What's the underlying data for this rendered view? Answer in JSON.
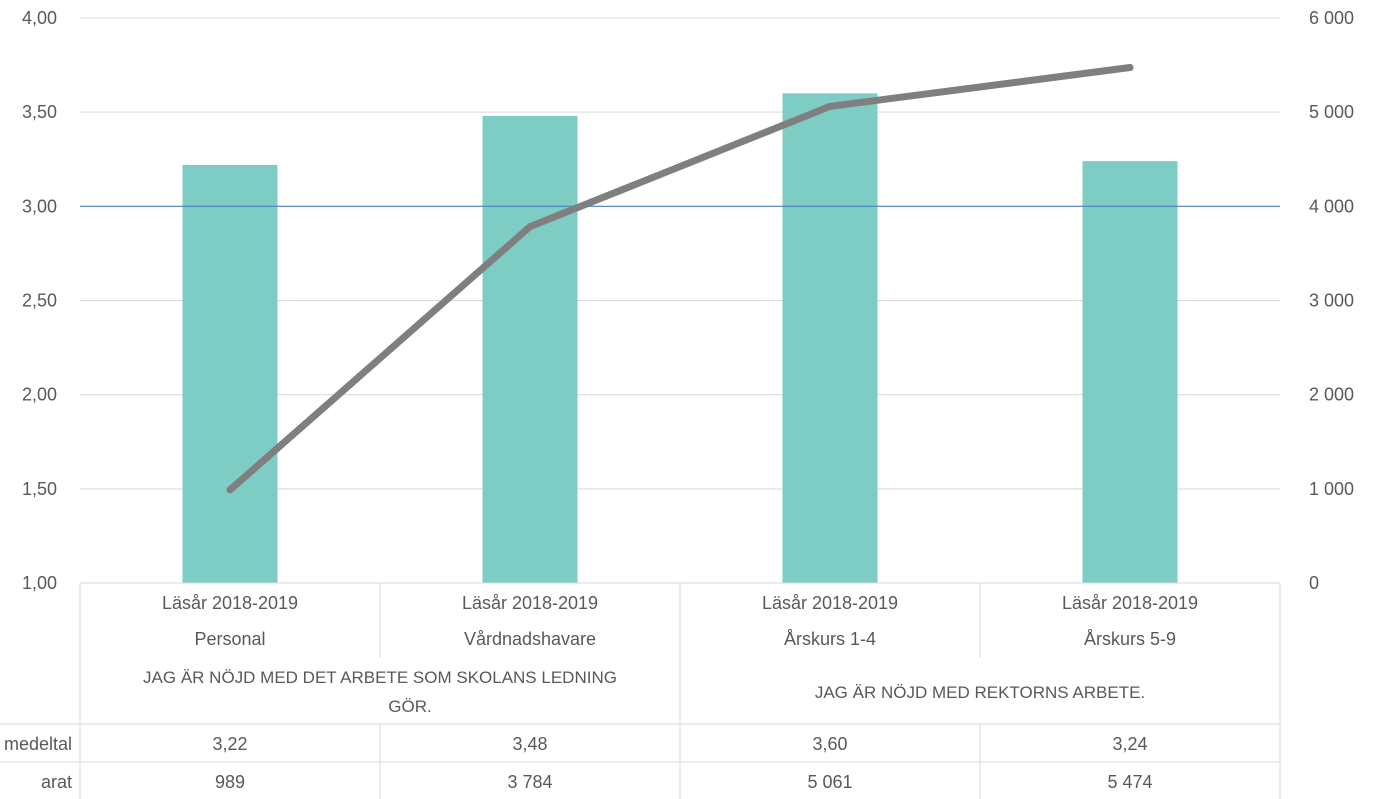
{
  "chart_data": {
    "type": "bar",
    "title": "",
    "categories": [
      [
        "Läsår 2018-2019",
        "Personal"
      ],
      [
        "Läsår 2018-2019",
        "Vårdnadshavare"
      ],
      [
        "Läsår 2018-2019",
        "Årskurs 1-4"
      ],
      [
        "Läsår 2018-2019",
        "Årskurs 5-9"
      ]
    ],
    "groups": [
      {
        "label": "JAG ÄR NÖJD MED DET ARBETE SOM SKOLANS LEDNING GÖR.",
        "span": [
          0,
          1
        ]
      },
      {
        "label": "JAG ÄR NÖJD MED REKTORNS ARBETE.",
        "span": [
          2,
          3
        ]
      }
    ],
    "series": [
      {
        "name": "medeltal",
        "type": "bar",
        "axis": "left",
        "color": "#7ECDC4",
        "values": [
          3.22,
          3.48,
          3.6,
          3.24
        ]
      },
      {
        "name": "arat",
        "type": "line",
        "axis": "right",
        "color": "#7F7F7F",
        "values": [
          989,
          3784,
          5061,
          5474
        ]
      }
    ],
    "table_values": {
      "medeltal": [
        "3,22",
        "3,48",
        "3,60",
        "3,24"
      ],
      "arat": [
        "989",
        "3 784",
        "5 061",
        "5 474"
      ]
    },
    "reference_line": {
      "value": 3.0,
      "axis": "left",
      "color": "#4F81BD"
    },
    "y_left": {
      "range": [
        1,
        4
      ],
      "ticks": [
        4,
        3.5,
        3,
        2.5,
        2,
        1.5,
        1
      ],
      "tick_labels": [
        "4,00",
        "3,50",
        "3,00",
        "2,50",
        "2,00",
        "1,50",
        "1,00"
      ]
    },
    "y_right": {
      "range": [
        0,
        6000
      ],
      "ticks": [
        6000,
        5000,
        4000,
        3000,
        2000,
        1000,
        0
      ],
      "tick_labels": [
        "6 000",
        "5 000",
        "4 000",
        "3 000",
        "2 000",
        "1 000",
        "0"
      ]
    },
    "grid": true,
    "legend": "data table rows"
  }
}
